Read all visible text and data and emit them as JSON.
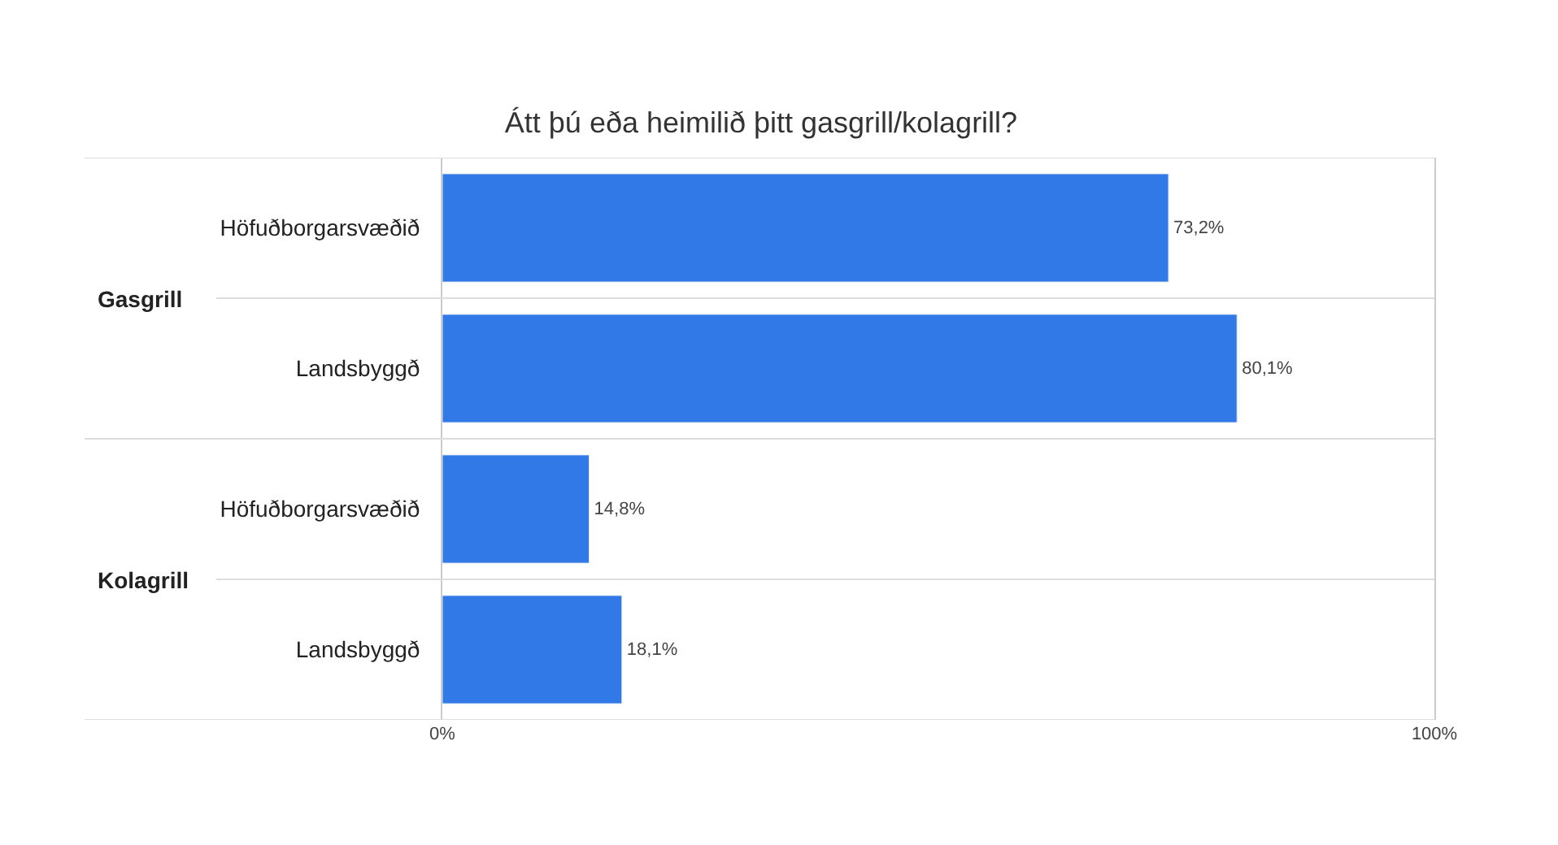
{
  "chart_data": {
    "type": "bar",
    "orientation": "horizontal",
    "title": "Átt þú eða heimilið þitt gasgrill/kolagrill?",
    "categories": [
      "Höfuðborgarsvæðið",
      "Landsbyggð",
      "Höfuðborgarsvæðið",
      "Landsbyggð"
    ],
    "values": [
      73.2,
      80.1,
      14.8,
      18.1
    ],
    "value_labels": [
      "73,2%",
      "80,1%",
      "14,8%",
      "18,1%"
    ],
    "color": "#3179e6",
    "xlim": [
      0,
      100
    ],
    "xticks": [
      {
        "value": 0,
        "label": "0%"
      },
      {
        "value": 100,
        "label": "100%"
      }
    ],
    "legend": false,
    "annotations": [
      "Gasgrill",
      "Kolagrill"
    ]
  }
}
